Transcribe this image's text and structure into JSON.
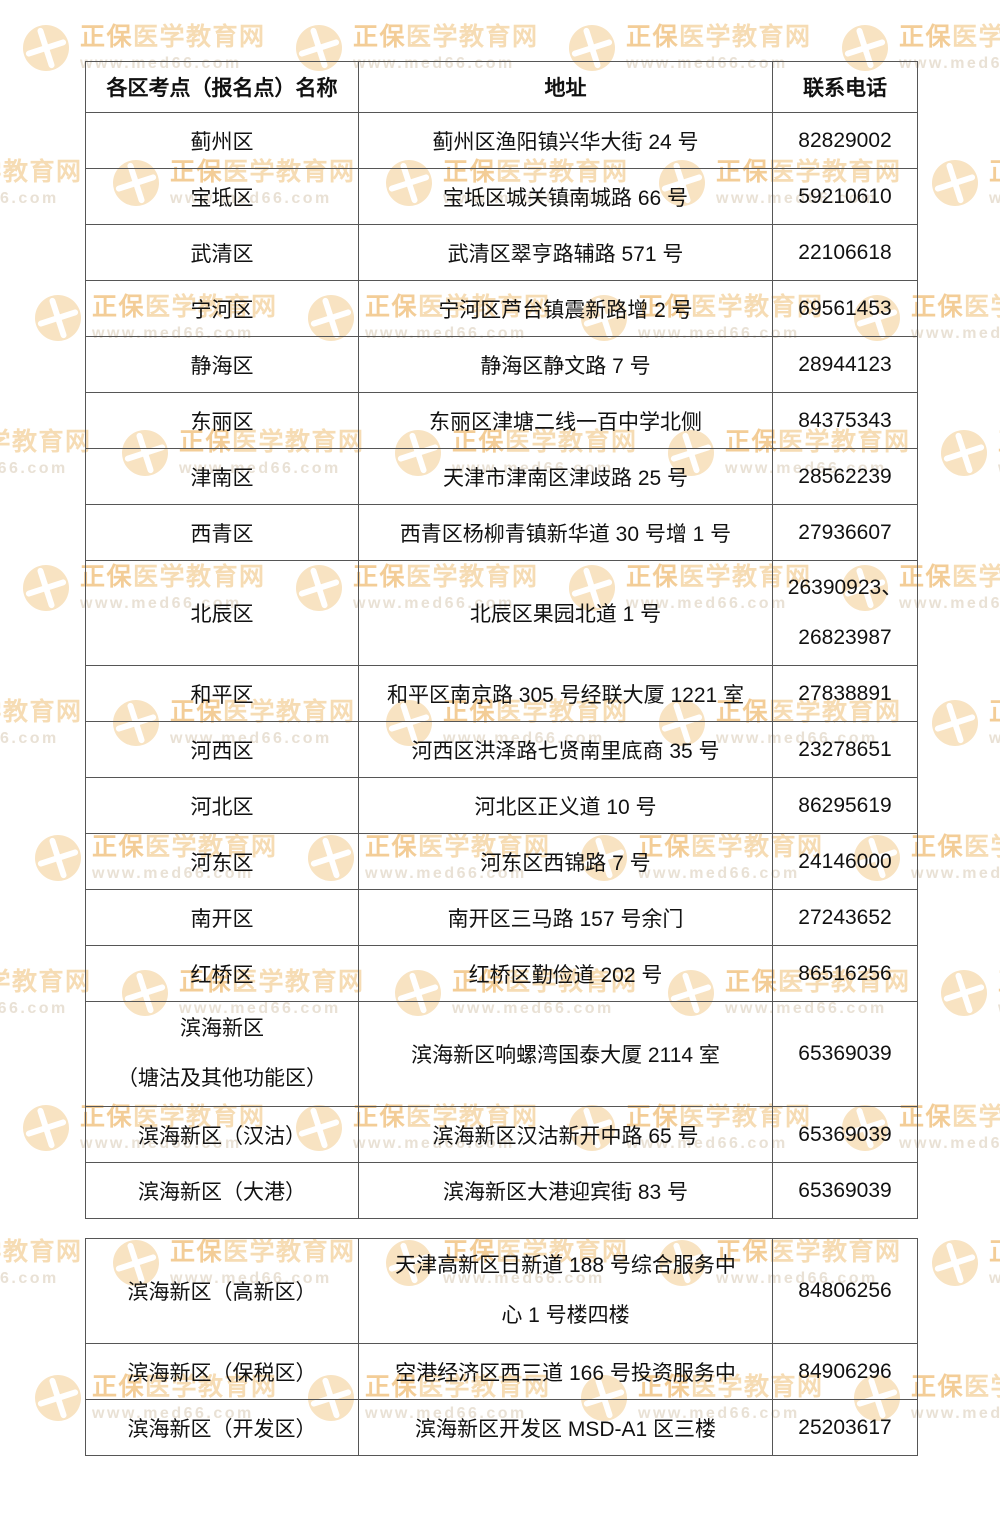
{
  "watermark": {
    "brand_strong": "正保",
    "brand_light": "医学教育网",
    "url": "www.med66.com"
  },
  "colors": {
    "background": "#ffffff",
    "border": "#565656",
    "text": "#111111",
    "wm_logo": "#f8e3c2",
    "wm_brand_strong": "#f3cd97",
    "wm_brand_light": "#f6dcb4",
    "wm_url": "#e9e1d5"
  },
  "headers": [
    "各区考点（报名点）名称",
    "地址",
    "联系电话"
  ],
  "tables": [
    {
      "rows": [
        {
          "name": [
            "蓟州区"
          ],
          "address": [
            "蓟州区渔阳镇兴华大街 24 号"
          ],
          "phone": [
            "82829002"
          ]
        },
        {
          "name": [
            "宝坻区"
          ],
          "address": [
            "宝坻区城关镇南城路 66 号"
          ],
          "phone": [
            "59210610"
          ]
        },
        {
          "name": [
            "武清区"
          ],
          "address": [
            "武清区翠亨路辅路 571 号"
          ],
          "phone": [
            "22106618"
          ]
        },
        {
          "name": [
            "宁河区"
          ],
          "address": [
            "宁河区芦台镇震新路增 2 号"
          ],
          "phone": [
            "69561453"
          ]
        },
        {
          "name": [
            "静海区"
          ],
          "address": [
            "静海区静文路 7 号"
          ],
          "phone": [
            "28944123"
          ]
        },
        {
          "name": [
            "东丽区"
          ],
          "address": [
            "东丽区津塘二线一百中学北侧"
          ],
          "phone": [
            "84375343"
          ]
        },
        {
          "name": [
            "津南区"
          ],
          "address": [
            "天津市津南区津歧路 25 号"
          ],
          "phone": [
            "28562239"
          ]
        },
        {
          "name": [
            "西青区"
          ],
          "address": [
            "西青区杨柳青镇新华道 30 号增 1 号"
          ],
          "phone": [
            "27936607"
          ]
        },
        {
          "name": [
            "北辰区"
          ],
          "address": [
            "北辰区果园北道 1 号"
          ],
          "phone": [
            "26390923、",
            "26823987"
          ]
        },
        {
          "name": [
            "和平区"
          ],
          "address": [
            "和平区南京路 305 号经联大厦 1221 室"
          ],
          "phone": [
            "27838891"
          ]
        },
        {
          "name": [
            "河西区"
          ],
          "address": [
            "河西区洪泽路七贤南里底商 35 号"
          ],
          "phone": [
            "23278651"
          ]
        },
        {
          "name": [
            "河北区"
          ],
          "address": [
            "河北区正义道 10 号"
          ],
          "phone": [
            "86295619"
          ]
        },
        {
          "name": [
            "河东区"
          ],
          "address": [
            "河东区西锦路 7 号"
          ],
          "phone": [
            "24146000"
          ]
        },
        {
          "name": [
            "南开区"
          ],
          "address": [
            "南开区三马路 157 号余门"
          ],
          "phone": [
            "27243652"
          ]
        },
        {
          "name": [
            "红桥区"
          ],
          "address": [
            "红桥区勤俭道 202 号"
          ],
          "phone": [
            "86516256"
          ]
        },
        {
          "name": [
            "滨海新区",
            "（塘沽及其他功能区）"
          ],
          "address": [
            "滨海新区响螺湾国泰大厦 2114 室"
          ],
          "phone": [
            "65369039"
          ]
        },
        {
          "name": [
            "滨海新区（汉沽）"
          ],
          "address": [
            "滨海新区汉沽新开中路 65 号"
          ],
          "phone": [
            "65369039"
          ]
        },
        {
          "name": [
            "滨海新区（大港）"
          ],
          "address": [
            "滨海新区大港迎宾街 83 号"
          ],
          "phone": [
            "65369039"
          ]
        }
      ]
    },
    {
      "rows": [
        {
          "name": [
            "滨海新区（高新区）"
          ],
          "address": [
            "天津高新区日新道 188 号综合服务中",
            "心 1 号楼四楼"
          ],
          "phone": [
            "84806256"
          ]
        },
        {
          "name": [
            "滨海新区（保税区）"
          ],
          "address": [
            "空港经济区西三道 166 号投资服务中"
          ],
          "phone": [
            "84906296"
          ]
        },
        {
          "name": [
            "滨海新区（开发区）"
          ],
          "address": [
            "滨海新区开发区 MSD-A1 区三楼"
          ],
          "phone": [
            "25203617"
          ]
        }
      ]
    }
  ]
}
